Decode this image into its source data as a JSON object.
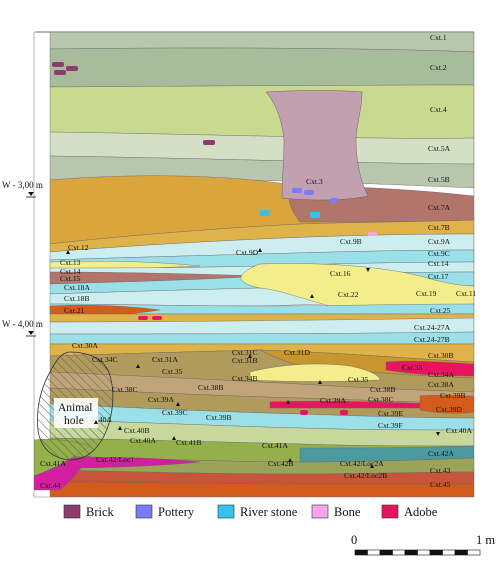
{
  "figure": {
    "depth_markers": [
      "W - 3,00 m",
      "W - 4,00 m"
    ],
    "hole_label": [
      "Animal",
      "hole"
    ],
    "scale_bar": {
      "start_label": "0",
      "end_label": "1 m",
      "segments": 10
    }
  },
  "colors": {
    "brick": "#8e3b6e",
    "pottery": "#7b7bff",
    "river_stone": "#33c3f0",
    "bone": "#f4a6e8",
    "adobe": "#e8145f",
    "grey_green": "#b9c6ae",
    "olive": "#c9d98f",
    "sage": "#d3e0c5",
    "tan": "#d9a53c",
    "rose_brown": "#b2756c",
    "mauve": "#c2a0b0",
    "pale_cyan": "#cdeeee",
    "cyan": "#9be0e8",
    "gold": "#dfb24a",
    "khaki": "#b09a5c",
    "ochre": "#c8952e",
    "yellow": "#f3ed8c",
    "orange": "#d35c1c",
    "olive_green": "#9aa35a",
    "green": "#94b04a",
    "red_brown": "#c8553a"
  },
  "layers": {
    "cxt1": "Cxt.1",
    "cxt2": "Cxt.2",
    "cxt3": "Cxt.3",
    "cxt4": "Cxt.4",
    "cxt5a": "Cxt.5A",
    "cxt5b": "Cxt.5B",
    "cxt7a": "Cxt.7A",
    "cxt7b": "Cxt.7B",
    "cxt9a": "Cxt.9A",
    "cxt9b": "Cxt.9B",
    "cxt9c": "Cxt.9C",
    "cxt9d": "Cxt.9D",
    "cxt12": "Cxt.12",
    "cxt13": "Cxt.13",
    "cxt14l": "Cxt.14",
    "cxt14r": "Cxt.14",
    "cxt15": "Cxt.15",
    "cxt16": "Cxt.16",
    "cxt17": "Cxt.17",
    "cxt18a": "Cxt.18A",
    "cxt18b": "Cxt.18B",
    "cxt19": "Cxt.19",
    "cxt21": "Cxt.21",
    "cxt22": "Cxt.22",
    "cxt25": "Cxt.25",
    "cxt24_27a": "Cxt.24-27A",
    "cxt24_27b": "Cxt.24-27B",
    "cxt30a": "Cxt.30A",
    "cxt30b": "Cxt.30B",
    "cxt31a": "Cxt.31A",
    "cxt31b": "Cxt.31B",
    "cxt31c": "Cxt.31C",
    "cxt31d": "Cxt.31D",
    "cxt33": "Cxt.33",
    "cxt34a": "Cxt.34A",
    "cxt34b": "Cxt.34B",
    "cxt34c": "Cxt.34C",
    "cxt35a": "Cxt.35",
    "cxt35b": "Cxt.35",
    "cxt38a": "Cxt.38A",
    "cxt38b_left": "Cxt.38B",
    "cxt38b_right": "Cxt.38B",
    "cxt38c_left": "Cxt.38C",
    "cxt38c_right": "Cxt.38C",
    "cxt39a_left": "Cxt.39A",
    "cxt39a_right": "Cxt.39A",
    "cxt39b_left": "Cxt.39B",
    "cxt39b_right": "Cxt.39B",
    "cxt39c": "Cxt.39C",
    "cxt39d": "Cxt.39D",
    "cxt39e": "Cxt.39E",
    "cxt39f": "Cxt.39F",
    "cxt40a_left": "Cxt.40A",
    "cxt40a_mid": "Cxt.40A",
    "cxt40a_right": "Cxt.40A",
    "cxt40b": "Cxt.40B",
    "cxt41a_mid": "Cxt.41A",
    "cxt41a_left": "Cxt.41A",
    "cxt41b": "Cxt.41B",
    "cxt42a": "Cxt.42A",
    "cxt42b": "Cxt.42B",
    "cxt42loc1": "Cxt.42/Loc1",
    "cxt42loc2a": "Cxt.42/Loc2A",
    "cxt42loc2b": "Cxt.42/Loc2B",
    "cxt43": "Cxt.43",
    "cxt44": "Cxt.44",
    "cxt45": "Cxt.45",
    "cxt11": "Cxt.11"
  },
  "legend": [
    {
      "key": "brick",
      "label": "Brick"
    },
    {
      "key": "pottery",
      "label": "Pottery"
    },
    {
      "key": "river_stone",
      "label": "River stone"
    },
    {
      "key": "bone",
      "label": "Bone"
    },
    {
      "key": "adobe",
      "label": "Adobe"
    }
  ]
}
